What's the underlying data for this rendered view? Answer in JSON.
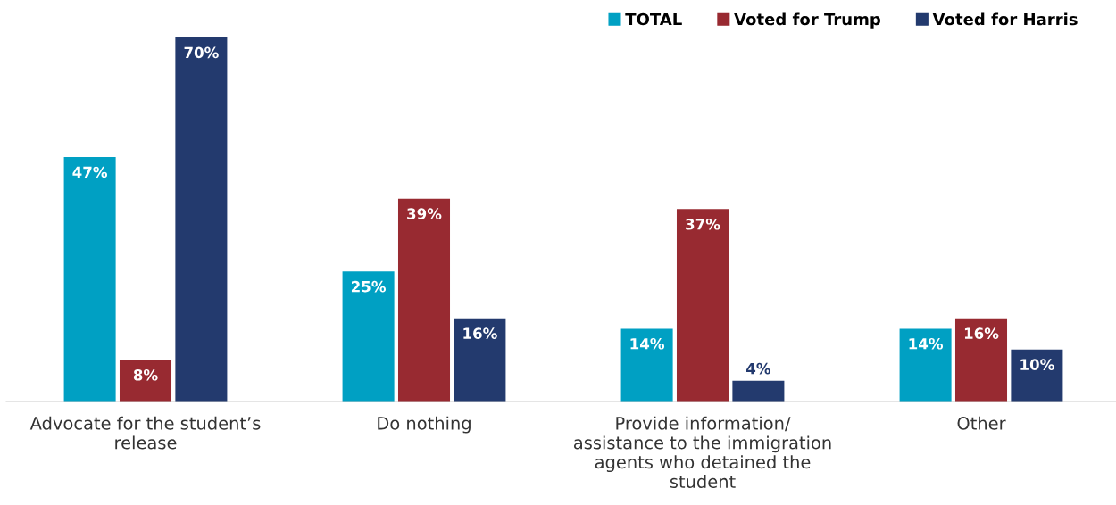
{
  "chart_data": {
    "type": "bar",
    "categories": [
      "Advocate for the student’s release",
      "Do nothing",
      "Provide information/ assistance to the immigration agents who detained the student",
      "Other"
    ],
    "series": [
      {
        "name": "TOTAL",
        "color": "#00a0c3",
        "values": [
          47,
          25,
          14,
          14
        ],
        "value_labels": [
          "47%",
          "25%",
          "14%",
          "14%"
        ]
      },
      {
        "name": "Voted for Trump",
        "color": "#982a31",
        "values": [
          8,
          39,
          37,
          16
        ],
        "value_labels": [
          "8%",
          "39%",
          "37%",
          "16%"
        ]
      },
      {
        "name": "Voted for Harris",
        "color": "#233a6e",
        "values": [
          70,
          16,
          4,
          10
        ],
        "value_labels": [
          "70%",
          "16%",
          "4%",
          "10%"
        ]
      }
    ],
    "legend": "top right",
    "grid": false
  }
}
